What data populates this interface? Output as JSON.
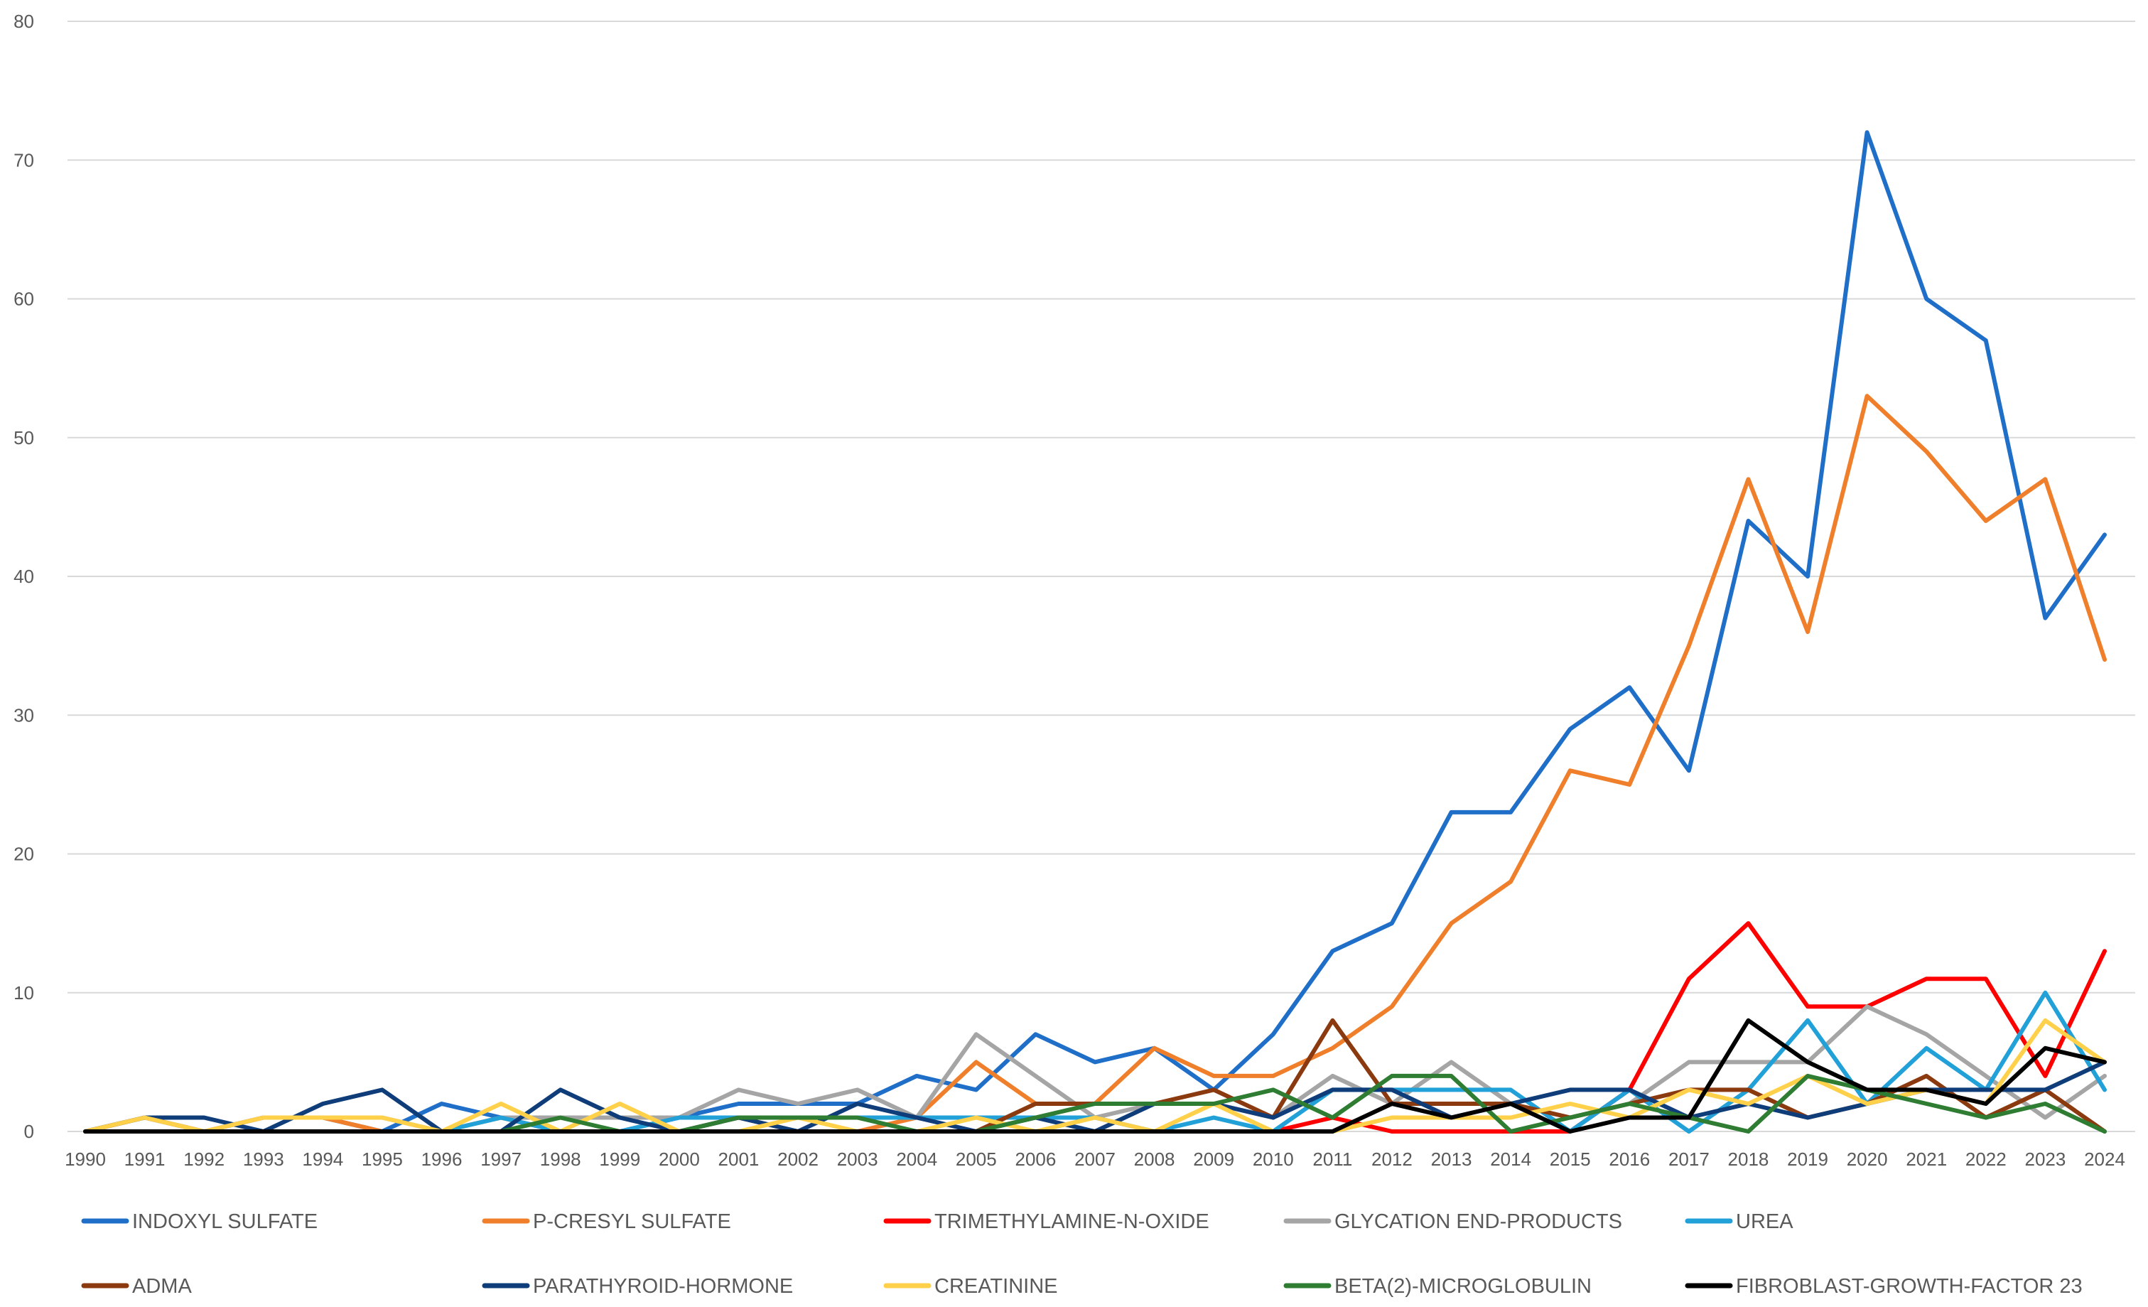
{
  "chart_data": {
    "type": "line",
    "title": "",
    "xlabel": "",
    "ylabel": "",
    "ylim": [
      0,
      80
    ],
    "y_ticks": [
      0,
      10,
      20,
      30,
      40,
      50,
      60,
      70,
      80
    ],
    "grid": true,
    "legend_position": "bottom",
    "x": [
      "1990",
      "1991",
      "1992",
      "1993",
      "1994",
      "1995",
      "1996",
      "1997",
      "1998",
      "1999",
      "2000",
      "2001",
      "2002",
      "2003",
      "2004",
      "2005",
      "2006",
      "2007",
      "2008",
      "2009",
      "2010",
      "2011",
      "2012",
      "2013",
      "2014",
      "2015",
      "2016",
      "2017",
      "2018",
      "2019",
      "2020",
      "2021",
      "2022",
      "2023",
      "2024"
    ],
    "series": [
      {
        "name": "INDOXYL SULFATE",
        "color": "#1f6fc9",
        "values": [
          0,
          1,
          0,
          1,
          1,
          0,
          2,
          1,
          0,
          0,
          1,
          2,
          2,
          2,
          4,
          3,
          7,
          5,
          6,
          3,
          7,
          13,
          15,
          23,
          23,
          29,
          32,
          26,
          44,
          40,
          72,
          60,
          57,
          37,
          43
        ]
      },
      {
        "name": "P-CRESYL SULFATE",
        "color": "#f07f2b",
        "values": [
          0,
          1,
          0,
          1,
          1,
          0,
          0,
          1,
          0,
          0,
          0,
          0,
          0,
          0,
          1,
          5,
          2,
          2,
          6,
          4,
          4,
          6,
          9,
          15,
          18,
          26,
          25,
          35,
          47,
          36,
          53,
          49,
          44,
          47,
          34
        ]
      },
      {
        "name": "TRIMETHYLAMINE-N-OXIDE",
        "color": "#ff0000",
        "values": [
          0,
          0,
          0,
          0,
          0,
          0,
          0,
          0,
          0,
          0,
          0,
          0,
          0,
          0,
          0,
          0,
          0,
          0,
          0,
          0,
          0,
          1,
          0,
          0,
          0,
          0,
          3,
          11,
          15,
          9,
          9,
          11,
          11,
          4,
          13
        ]
      },
      {
        "name": "GLYCATION END-PRODUCTS",
        "color": "#a5a5a5",
        "values": [
          0,
          1,
          0,
          1,
          1,
          1,
          0,
          1,
          1,
          1,
          1,
          3,
          2,
          3,
          1,
          7,
          4,
          1,
          2,
          2,
          1,
          4,
          2,
          5,
          2,
          1,
          2,
          5,
          5,
          5,
          9,
          7,
          4,
          1,
          4
        ]
      },
      {
        "name": "UREA",
        "color": "#22a0d8",
        "values": [
          0,
          0,
          0,
          0,
          0,
          0,
          0,
          1,
          0,
          0,
          1,
          1,
          1,
          1,
          1,
          1,
          1,
          1,
          0,
          1,
          0,
          3,
          3,
          3,
          3,
          0,
          3,
          0,
          3,
          8,
          2,
          6,
          3,
          10,
          3
        ]
      },
      {
        "name": "ADMA",
        "color": "#8b3a0f",
        "values": [
          0,
          0,
          0,
          0,
          0,
          0,
          0,
          0,
          0,
          0,
          0,
          1,
          0,
          0,
          0,
          0,
          2,
          2,
          2,
          3,
          1,
          8,
          2,
          2,
          2,
          1,
          2,
          3,
          3,
          1,
          2,
          4,
          1,
          3,
          0
        ]
      },
      {
        "name": "PARATHYROID-HORMONE",
        "color": "#0f3d7a",
        "values": [
          0,
          1,
          1,
          0,
          2,
          3,
          0,
          0,
          3,
          1,
          0,
          1,
          0,
          2,
          1,
          0,
          1,
          0,
          2,
          2,
          1,
          3,
          3,
          1,
          2,
          3,
          3,
          1,
          2,
          1,
          2,
          3,
          3,
          3,
          5
        ]
      },
      {
        "name": "CREATININE",
        "color": "#ffd04a",
        "values": [
          0,
          1,
          0,
          1,
          1,
          1,
          0,
          2,
          0,
          2,
          0,
          0,
          1,
          0,
          0,
          1,
          0,
          1,
          0,
          2,
          0,
          0,
          1,
          1,
          1,
          2,
          1,
          3,
          2,
          4,
          2,
          3,
          2,
          8,
          5
        ]
      },
      {
        "name": "BETA(2)-MICROGLOBULIN",
        "color": "#2e7d32",
        "values": [
          0,
          0,
          0,
          0,
          0,
          0,
          0,
          0,
          1,
          0,
          0,
          1,
          1,
          1,
          0,
          0,
          1,
          2,
          2,
          2,
          3,
          1,
          4,
          4,
          0,
          1,
          2,
          1,
          0,
          4,
          3,
          2,
          1,
          2,
          0
        ]
      },
      {
        "name": "FIBROBLAST-GROWTH-FACTOR 23",
        "color": "#000000",
        "values": [
          0,
          0,
          0,
          0,
          0,
          0,
          0,
          0,
          0,
          0,
          0,
          0,
          0,
          0,
          0,
          0,
          0,
          0,
          0,
          0,
          0,
          0,
          2,
          1,
          2,
          0,
          1,
          1,
          8,
          5,
          3,
          3,
          2,
          6,
          5
        ]
      }
    ]
  }
}
